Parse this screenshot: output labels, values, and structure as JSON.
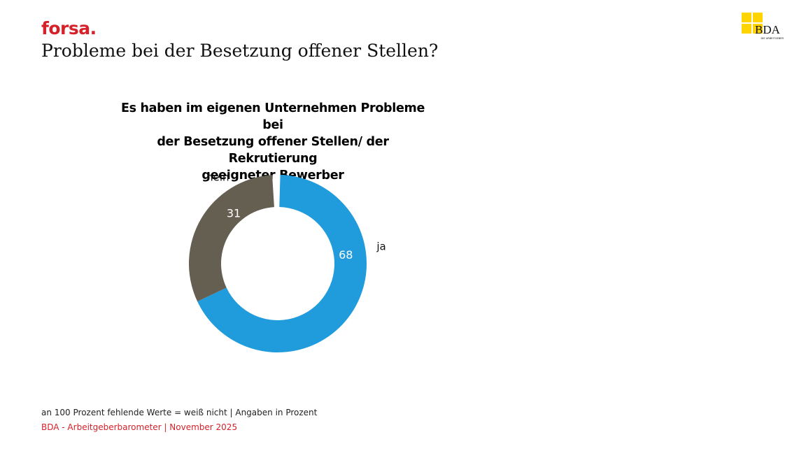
{
  "header": {
    "brand": "forsa.",
    "title": "Probleme bei der Besetzung offener Stellen?",
    "logo_text": "BDA",
    "logo_subtext": "DIE ARBEITGEBER"
  },
  "colors": {
    "accent_red": "#d5222a",
    "logo_yellow": "#ffd400",
    "slice_ja": "#209bdc",
    "slice_nein": "#655f52"
  },
  "chart_data": {
    "type": "pie",
    "title": "Es haben im eigenen Unternehmen Probleme bei der Besetzung offener Stellen/ der Rekrutierung geeigneter Bewerber",
    "title_lines": [
      "Es haben im eigenen Unternehmen Probleme bei",
      "der Besetzung offener Stellen/ der Rekrutierung",
      "geeigneter Bewerber"
    ],
    "categories": [
      "ja",
      "nein"
    ],
    "values": [
      68,
      31
    ],
    "total": 100,
    "unit": "Prozent",
    "donut": true,
    "legend": "none"
  },
  "footer": {
    "note": "an 100 Prozent fehlende Werte = weiß nicht | Angaben in Prozent",
    "source": "BDA - Arbeitgeberbarometer | November 2025"
  }
}
